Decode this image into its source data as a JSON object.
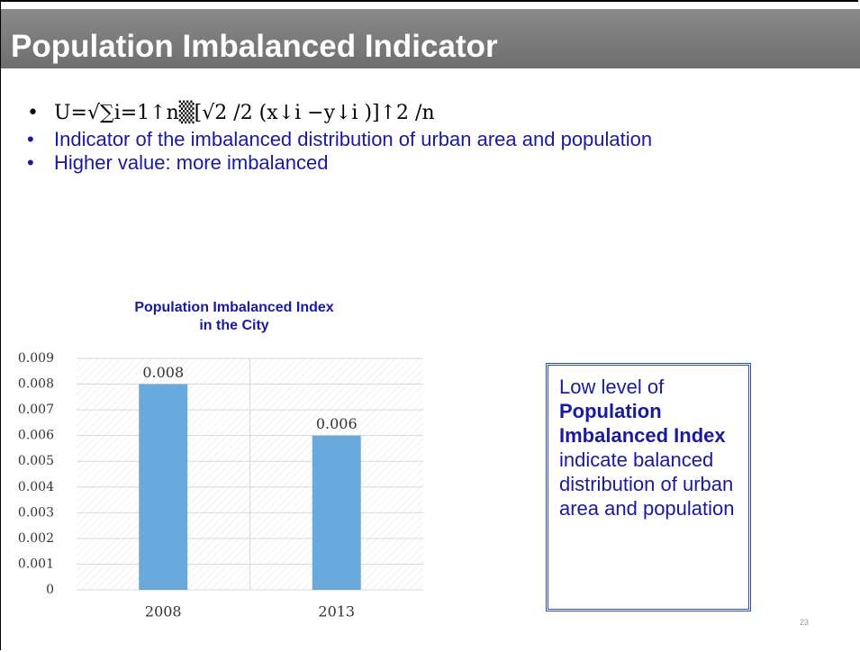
{
  "title": "Population Imbalanced Indicator",
  "bullets": [
    "U=√∑i=1↑n▒[√2 /2 (x↓i −y↓i )]↑2  /n",
    "Indicator of the imbalanced distribution of urban area and population",
    "Higher value: more imbalanced"
  ],
  "chart_data": {
    "type": "bar",
    "title": "Population Imbalanced Index in the City",
    "categories": [
      "2008",
      "2013"
    ],
    "values": [
      0.008,
      0.006
    ],
    "color": "#6aa9dc",
    "ylim": [
      0,
      0.009
    ],
    "yticks": [
      0,
      0.001,
      0.002,
      0.003,
      0.004,
      0.005,
      0.006,
      0.007,
      0.008,
      0.009
    ],
    "grid": true
  },
  "callout": {
    "parts": [
      "Low level of ",
      "Population Imbalanced Index",
      " indicate balanced distribution of urban area and population"
    ]
  },
  "page_number": "23"
}
